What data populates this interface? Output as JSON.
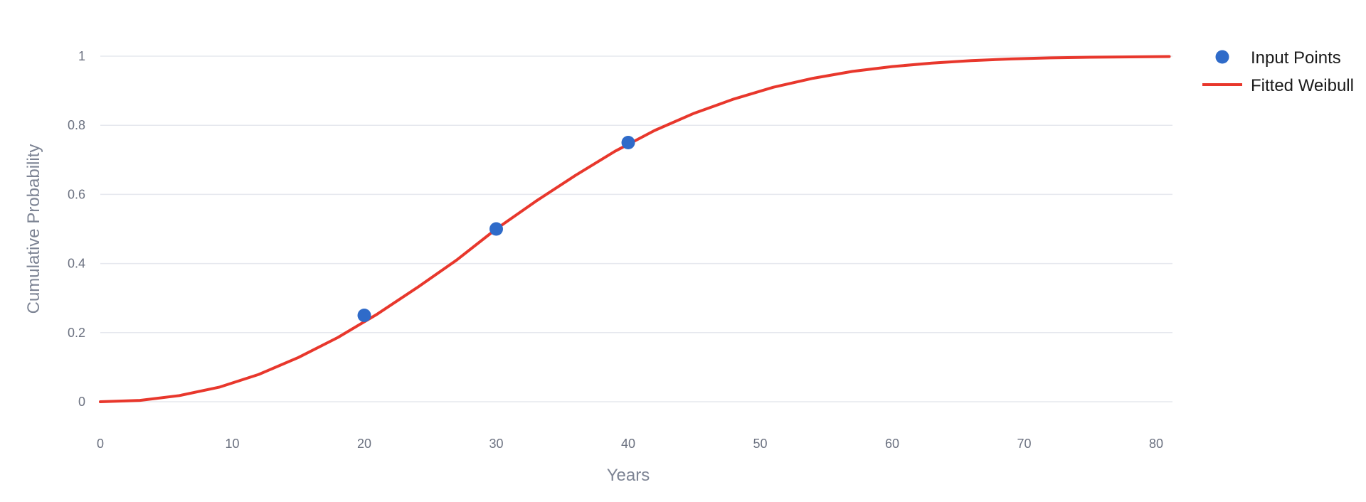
{
  "chart_data": {
    "type": "line",
    "title": "",
    "xlabel": "Years",
    "ylabel": "Cumulative Probability",
    "xlim": [
      0,
      81
    ],
    "ylim": [
      -0.08,
      1
    ],
    "x_ticks": [
      0,
      10,
      20,
      30,
      40,
      50,
      60,
      70,
      80
    ],
    "y_ticks": [
      0,
      0.2,
      0.4,
      0.6,
      0.8,
      1
    ],
    "y_tick_labels": [
      "0",
      "0.2",
      "0.4",
      "0.6",
      "0.8",
      "1"
    ],
    "x_tick_labels": [
      "0",
      "10",
      "20",
      "30",
      "40",
      "50",
      "60",
      "70",
      "80"
    ],
    "grid": "horizontal",
    "legend_position": "top-right",
    "series": [
      {
        "name": "Input Points",
        "kind": "scatter",
        "color": "#2f6bc9",
        "x": [
          20,
          30,
          40
        ],
        "y": [
          0.25,
          0.5,
          0.75
        ]
      },
      {
        "name": "Fitted Weibull",
        "kind": "line",
        "color": "#e8372c",
        "x": [
          0,
          3,
          6,
          9,
          12,
          15,
          18,
          21,
          24,
          27,
          30,
          33,
          36,
          39,
          42,
          45,
          48,
          51,
          54,
          57,
          60,
          63,
          66,
          69,
          72,
          75,
          78,
          81
        ],
        "y": [
          0,
          0.004,
          0.018,
          0.042,
          0.079,
          0.128,
          0.186,
          0.254,
          0.33,
          0.41,
          0.5,
          0.58,
          0.655,
          0.725,
          0.785,
          0.835,
          0.876,
          0.91,
          0.936,
          0.956,
          0.97,
          0.98,
          0.987,
          0.992,
          0.995,
          0.997,
          0.998,
          0.999
        ]
      }
    ]
  }
}
